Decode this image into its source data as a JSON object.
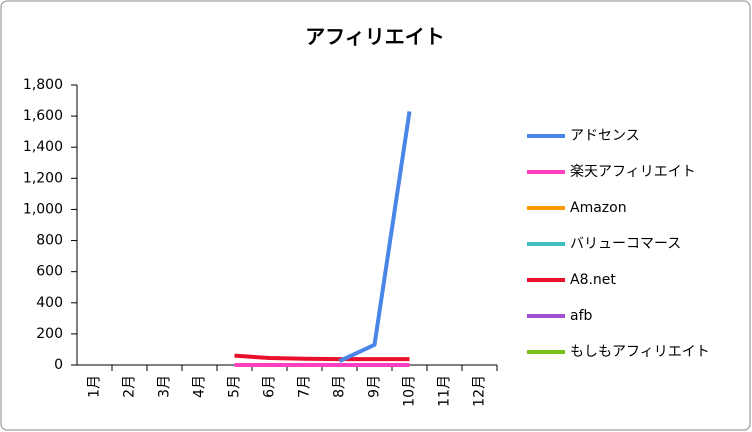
{
  "chart_data": {
    "type": "line",
    "title": "アフィリエイト",
    "categories": [
      "1月",
      "2月",
      "3月",
      "4月",
      "5月",
      "6月",
      "7月",
      "8月",
      "9月",
      "10月",
      "11月",
      "12月"
    ],
    "ylim": [
      0,
      1800
    ],
    "yticks": [
      0,
      200,
      400,
      600,
      800,
      {
        "value": 1000,
        "label": "1,000"
      },
      {
        "value": 1200,
        "label": "1,200"
      },
      {
        "value": 1400,
        "label": "1,400"
      },
      {
        "value": 1600,
        "label": "1,600"
      },
      {
        "value": 1800,
        "label": "1,800"
      }
    ],
    "grid": false,
    "legend": "right",
    "series": [
      {
        "name": "アドセンス",
        "color": "#4a86e8",
        "values": [
          null,
          null,
          null,
          null,
          null,
          null,
          null,
          25,
          130,
          1630,
          null,
          null
        ]
      },
      {
        "name": "楽天アフィリエイト",
        "color": "#ff3fbf",
        "values": [
          null,
          null,
          null,
          null,
          0,
          0,
          0,
          0,
          0,
          0,
          null,
          null
        ]
      },
      {
        "name": "Amazon",
        "color": "#ff9a00",
        "values": [
          null,
          null,
          null,
          null,
          0,
          0,
          0,
          0,
          0,
          0,
          null,
          null
        ]
      },
      {
        "name": "バリューコマース",
        "color": "#3fbfbf",
        "values": [
          null,
          null,
          null,
          null,
          0,
          0,
          0,
          0,
          0,
          0,
          null,
          null
        ]
      },
      {
        "name": "A8.net",
        "color": "#e8102a",
        "values": [
          null,
          null,
          null,
          null,
          60,
          45,
          40,
          38,
          38,
          38,
          null,
          null
        ]
      },
      {
        "name": "afb",
        "color": "#a050d0",
        "values": [
          null,
          null,
          null,
          null,
          0,
          0,
          0,
          0,
          0,
          0,
          null,
          null
        ]
      },
      {
        "name": "もしもアフィリエイト",
        "color": "#7ac21a",
        "values": [
          null,
          null,
          null,
          null,
          0,
          0,
          0,
          0,
          0,
          0,
          null,
          null
        ]
      }
    ]
  }
}
